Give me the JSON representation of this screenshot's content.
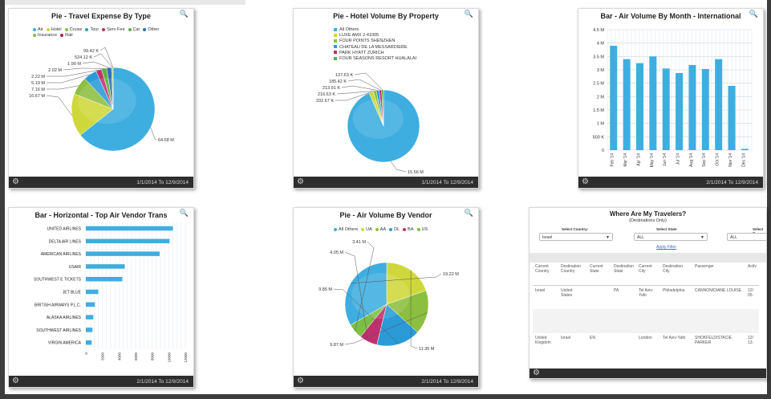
{
  "widgets": {
    "travel_expense": {
      "title": "Pie - Travel Expense By Type",
      "date_range": "1/1/2014 To 12/9/2014",
      "legend": [
        {
          "label": "Air",
          "color": "#3eaee0"
        },
        {
          "label": "Hotel",
          "color": "#cfd83a"
        },
        {
          "label": "Cruise",
          "color": "#8cbf3f"
        },
        {
          "label": "Tour",
          "color": "#2a9bd6"
        },
        {
          "label": "Serv Fee",
          "color": "#c0306e"
        },
        {
          "label": "Car",
          "color": "#5ab043"
        },
        {
          "label": "Other",
          "color": "#2f6fb7"
        },
        {
          "label": "Insurance",
          "color": "#7dbf44"
        },
        {
          "label": "Rail",
          "color": "#a1245f"
        }
      ]
    },
    "hotel_volume": {
      "title": "Pie - Hotel Volume By Property",
      "date_range": "1/1/2014 To 12/9/2014",
      "legend": [
        {
          "label": "All Others",
          "color": "#3eaee0"
        },
        {
          "label": "LUXE AMX 2-41005",
          "color": "#cfd83a"
        },
        {
          "label": "FOUR POINTS SHENZHEN",
          "color": "#8cbf3f"
        },
        {
          "label": "CHATEAU DE LA MESSARDIERE",
          "color": "#2a9bd6"
        },
        {
          "label": "PARK HYATT ZURICH",
          "color": "#c0306e"
        },
        {
          "label": "FOUR SEASONS RESORT HUALALAI",
          "color": "#5ab043"
        }
      ]
    },
    "air_volume_month": {
      "title": "Bar - Air Volume By Month - International",
      "date_range": "2/1/2014 To 12/9/2014"
    },
    "top_air_vendor": {
      "title": "Bar - Horizontal - Top Air Vendor Trans",
      "date_range": "2/1/2014 To 12/9/2014"
    },
    "air_volume_vendor": {
      "title": "Pie - Air Volume By Vendor",
      "date_range": "2/1/2014 To 12/9/2014",
      "legend": [
        {
          "label": "All Others",
          "color": "#3eaee0"
        },
        {
          "label": "UA",
          "color": "#cfd83a"
        },
        {
          "label": "AA",
          "color": "#8cbf3f"
        },
        {
          "label": "DL",
          "color": "#2a9bd6"
        },
        {
          "label": "BA",
          "color": "#c0306e"
        },
        {
          "label": "US",
          "color": "#7dbf44"
        }
      ]
    },
    "travelers": {
      "title": "Where Are My Travelers?",
      "subtitle": "(Destinations Only)",
      "country_label": "Select Country:",
      "country_value": "Israel",
      "state_label": "Select State",
      "state_value": "ALL",
      "third_label": "Select C",
      "third_value": "ALL",
      "apply_label": "Apply Filter",
      "columns": [
        "Current Country",
        "Destination Country",
        "Current State",
        "Destination State",
        "Current City",
        "Destination City",
        "Passenger",
        "Activ"
      ],
      "rows": [
        [
          "Israel",
          "United States",
          "",
          "PA",
          "Tel Aviv-Yafo",
          "Philadelphia",
          "CANNON/DIANE LOUISE",
          "12/ 05:"
        ],
        [
          "",
          "",
          "",
          "",
          "",
          "",
          "",
          ""
        ],
        [
          "United Kingdom",
          "Israel",
          "EN",
          "",
          "London",
          "Tel Aviv-Yafo",
          "SHOKFELD/STACIE PARKER",
          "12/ 13:"
        ]
      ]
    }
  },
  "chart_data": [
    {
      "type": "pie",
      "title": "Pie - Travel Expense By Type",
      "slices": [
        {
          "name": "Air",
          "value": 64.58,
          "label": "64.58 M"
        },
        {
          "name": "Hotel",
          "value": 16.67,
          "label": "16.67 M"
        },
        {
          "name": "Cruise",
          "value": 7.16,
          "label": "7.16 M"
        },
        {
          "name": "Tour",
          "value": 5.19,
          "label": "5.19 M"
        },
        {
          "name": "Serv Fee",
          "value": 2.22,
          "label": "2.22 M"
        },
        {
          "name": "Car",
          "value": 2.02,
          "label": "2.02 M"
        },
        {
          "name": "Other",
          "value": 1.9,
          "label": "1.90 M"
        },
        {
          "name": "Insurance",
          "value": 0.524,
          "label": "524.12 K"
        },
        {
          "name": "Rail",
          "value": 0.099,
          "label": "99.42 K"
        }
      ]
    },
    {
      "type": "pie",
      "title": "Pie - Hotel Volume By Property",
      "slices": [
        {
          "name": "All Others",
          "value": 15.56,
          "label": "15.56 M"
        },
        {
          "name": "LUXE AMX 2-41005",
          "value": 0.333,
          "label": "332.67 K"
        },
        {
          "name": "FOUR POINTS SHENZHEN",
          "value": 0.217,
          "label": "216.63 K"
        },
        {
          "name": "CHATEAU DE LA MESSARDIERE",
          "value": 0.214,
          "label": "213.91 K"
        },
        {
          "name": "PARK HYATT ZURICH",
          "value": 0.185,
          "label": "185.42 K"
        },
        {
          "name": "FOUR SEASONS RESORT HUALALAI",
          "value": 0.138,
          "label": "137.63 K"
        }
      ]
    },
    {
      "type": "bar",
      "title": "Bar - Air Volume By Month - International",
      "categories": [
        "Feb '14",
        "Mar '14",
        "Apr '14",
        "May '14",
        "Jun '14",
        "Jul '14",
        "Aug '14",
        "Sep '14",
        "Oct '14",
        "Nov '14",
        "Dec '14"
      ],
      "values": [
        3.9,
        3.4,
        3.25,
        3.5,
        3.05,
        2.88,
        3.18,
        3.03,
        3.4,
        2.4,
        0.05
      ],
      "ylim": [
        0,
        4.5
      ],
      "yticks": [
        "0",
        "500 K",
        "1 M",
        "1.5 M",
        "2 M",
        "2.5 M",
        "3 M",
        "3.5 M",
        "4 M",
        "4.5 M"
      ],
      "grid": true
    },
    {
      "type": "bar",
      "orientation": "horizontal",
      "title": "Bar - Horizontal - Top Air Vendor Trans",
      "categories": [
        "UNITED AIRLINES",
        "DELTA AIR LINES",
        "AMERICAN AIRLINES",
        "USAIR",
        "SOUTHWEST E TICKETS",
        "JET BLUE",
        "BRITISH AIRWAYS P.L.C.",
        "ALASKA AIRLINES",
        "SOUTHWEST AIRLINES",
        "VIRGIN AMERICA"
      ],
      "values": [
        10500,
        10100,
        8900,
        4700,
        4400,
        1500,
        1100,
        900,
        800,
        700
      ],
      "xlim": [
        0,
        12000
      ],
      "xticks": [
        "0",
        "2000",
        "4000",
        "6000",
        "8000",
        "10000",
        "12000"
      ],
      "grid": true
    },
    {
      "type": "pie",
      "title": "Pie - Air Volume By Vendor",
      "slices": [
        {
          "name": "UA",
          "value": 11.35,
          "label": "11.35 M"
        },
        {
          "name": "AA",
          "value": 9.87,
          "label": "9.87 M"
        },
        {
          "name": "DL",
          "value": 9.85,
          "label": "9.85 M"
        },
        {
          "name": "BA",
          "value": 4.05,
          "label": "4.05 M"
        },
        {
          "name": "US",
          "value": 3.41,
          "label": "3.41 M"
        },
        {
          "name": "All Others",
          "value": 19.22,
          "label": "19.22 M"
        }
      ]
    }
  ]
}
